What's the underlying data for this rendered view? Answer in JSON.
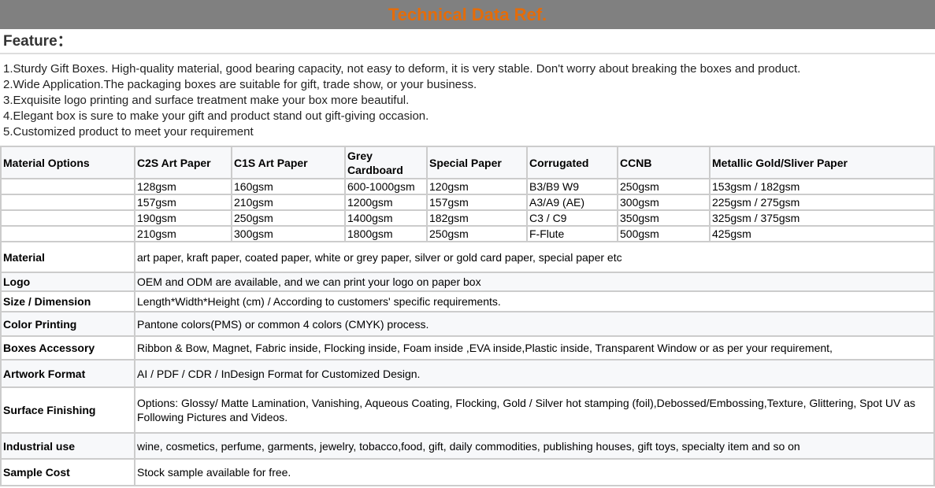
{
  "title": "Technical Data Ref.",
  "feature_heading": "Feature：",
  "features": [
    "1.Sturdy Gift Boxes. High-quality material, good bearing capacity, not easy to deform, it is very stable. Don't worry about breaking the boxes and product.",
    "2.Wide Application.The packaging boxes are suitable for gift, trade show, or your business.",
    "3.Exquisite logo printing and surface treatment make your box more beautiful.",
    "4.Elegant box is sure to make your gift and product stand out gift-giving occasion.",
    "5.Customized product to meet your requirement"
  ],
  "material_table": {
    "headers": [
      "Material Options",
      "C2S Art Paper",
      "C1S Art Paper",
      "Grey Cardboard",
      "Special Paper",
      "Corrugated",
      "CCNB",
      "Metallic Gold/Sliver Paper"
    ],
    "rows": [
      [
        "",
        "128gsm",
        "160gsm",
        "600-1000gsm",
        "120gsm",
        "B3/B9 W9",
        "250gsm",
        "153gsm / 182gsm"
      ],
      [
        "",
        "157gsm",
        "210gsm",
        "1200gsm",
        "157gsm",
        "A3/A9 (AE)",
        "300gsm",
        "225gsm / 275gsm"
      ],
      [
        "",
        "190gsm",
        "250gsm",
        "1400gsm",
        "182gsm",
        "C3 / C9",
        "350gsm",
        "325gsm / 375gsm"
      ],
      [
        "",
        "210gsm",
        "300gsm",
        "1800gsm",
        "250gsm",
        "F-Flute",
        "500gsm",
        "425gsm"
      ]
    ]
  },
  "specs": [
    {
      "label": "Material",
      "value": "art paper, kraft paper, coated paper, white or grey paper, silver or gold card paper, special paper etc"
    },
    {
      "label": "Logo",
      "value": "OEM and ODM are available, and we can print your logo on paper box"
    },
    {
      "label": "Size / Dimension",
      "value": "Length*Width*Height (cm) / According to customers' specific requirements."
    },
    {
      "label": "Color Printing",
      "value": "Pantone colors(PMS) or common 4 colors (CMYK) process."
    },
    {
      "label": "Boxes Accessory",
      "value": "Ribbon & Bow, Magnet, Fabric inside, Flocking inside, Foam inside ,EVA inside,Plastic inside, Transparent Window or as per your requirement,"
    },
    {
      "label": "Artwork Format",
      "value": "AI / PDF / CDR / InDesign Format for Customized Design."
    },
    {
      "label": "Surface Finishing",
      "value": "Options: Glossy/ Matte Lamination, Vanishing, Aqueous Coating, Flocking, Gold / Silver hot stamping (foil),Debossed/Embossing,Texture, Glittering, Spot UV as Following Pictures and Videos."
    },
    {
      "label": "Industrial use",
      "value": "wine, cosmetics, perfume, garments, jewelry, tobacco,food, gift, daily commodities, publishing houses, gift toys, specialty item and so on"
    },
    {
      "label": "Sample Cost",
      "value": "Stock sample available for free."
    }
  ]
}
